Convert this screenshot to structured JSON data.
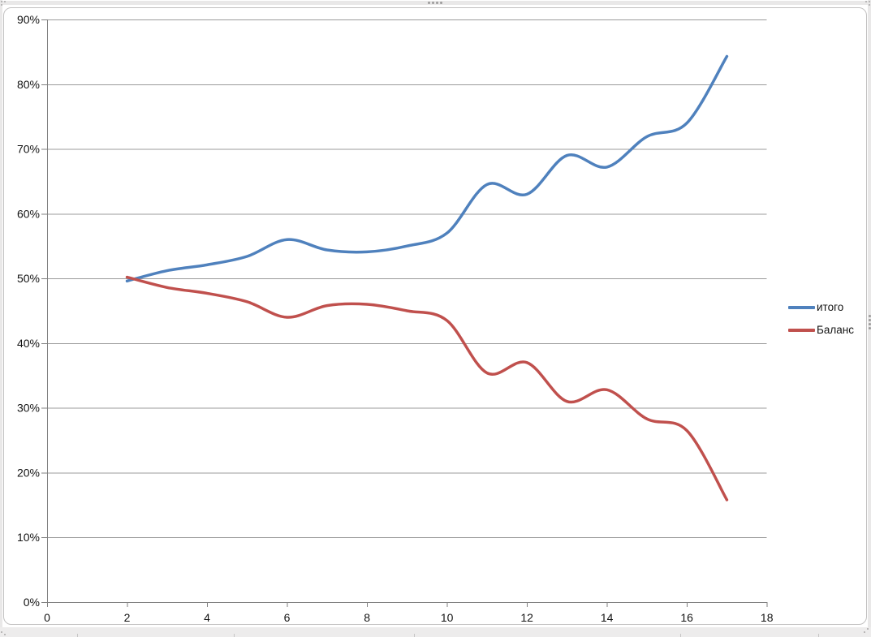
{
  "chart_data": {
    "type": "line",
    "smooth": true,
    "title": "",
    "xlabel": "",
    "ylabel": "",
    "x": [
      2,
      3,
      4,
      5,
      6,
      7,
      8,
      9,
      10,
      11,
      12,
      13,
      14,
      15,
      16,
      17
    ],
    "series": [
      {
        "name": "итого",
        "color": "#4F81BD",
        "values": [
          49.6,
          51.2,
          52.1,
          53.4,
          56.0,
          54.4,
          54.1,
          55.0,
          57.0,
          64.5,
          63.0,
          69.0,
          67.2,
          71.9,
          74.0,
          84.3
        ]
      },
      {
        "name": "Баланс",
        "color": "#C0504D",
        "values": [
          50.2,
          48.6,
          47.7,
          46.4,
          44.0,
          45.8,
          46.0,
          45.0,
          43.5,
          35.4,
          37.0,
          31.0,
          32.8,
          28.3,
          26.5,
          15.8
        ]
      }
    ],
    "xlim": [
      0,
      18
    ],
    "ylim": [
      0,
      90
    ],
    "x_tick_labels": [
      "0",
      "2",
      "4",
      "6",
      "8",
      "10",
      "12",
      "14",
      "16",
      "18"
    ],
    "y_tick_labels": [
      "0%",
      "10%",
      "20%",
      "30%",
      "40%",
      "50%",
      "60%",
      "70%",
      "80%",
      "90%"
    ],
    "y_axis_format": "percent",
    "grid": "horizontal-only",
    "legend_position": "right",
    "gridline_color": "#9b9b9b",
    "axis_color": "#808080",
    "tick_label_color": "#141414",
    "line_width": 3.5
  },
  "legend": {
    "items": [
      {
        "label": "итого",
        "color": "#4F81BD"
      },
      {
        "label": "Баланс",
        "color": "#C0504D"
      }
    ]
  },
  "frame": {
    "selection_handle": "drag-dots",
    "worksheet_bg": "#e9e8e8",
    "chart_border": "#c2c1c1"
  }
}
